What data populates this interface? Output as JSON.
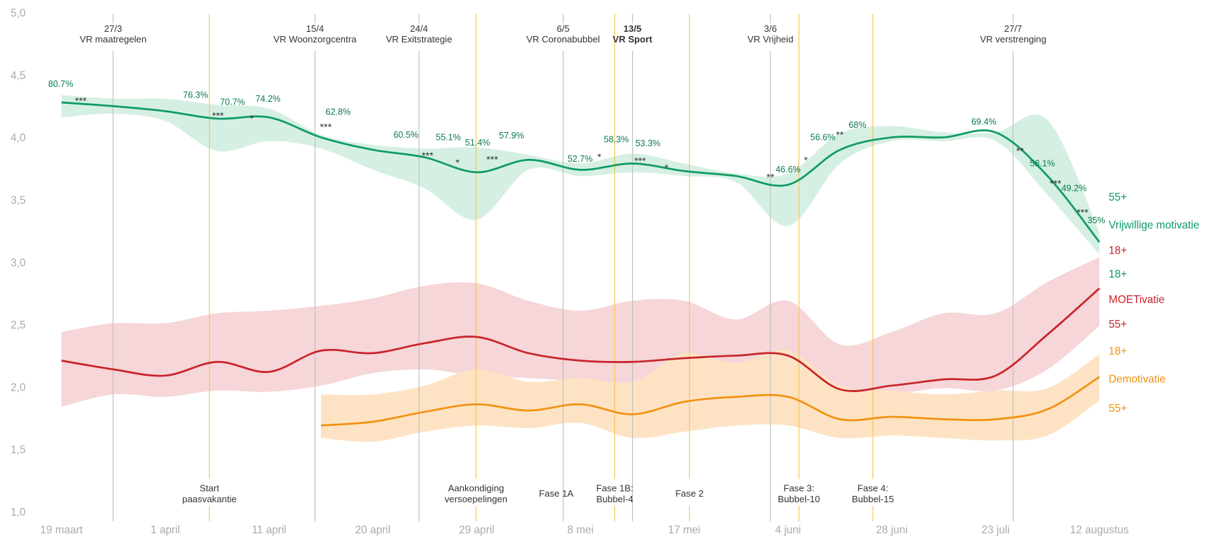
{
  "chart_data": {
    "type": "line",
    "categories": [
      "19 maart",
      null,
      "1 april",
      null,
      "11 april",
      null,
      "20 april",
      null,
      "29 april",
      null,
      "8 mei",
      null,
      "17 mei",
      null,
      "4 juni",
      null,
      "28 juni",
      null,
      "23 juli",
      null,
      "12 augustus"
    ],
    "ylim": [
      1,
      5
    ],
    "yticks": [
      {
        "value": 1,
        "label": "1,0"
      },
      {
        "value": 1.5,
        "label": "1,5"
      },
      {
        "value": 2,
        "label": "2,0"
      },
      {
        "value": 2.5,
        "label": "2,5"
      },
      {
        "value": 3,
        "label": "3,0"
      },
      {
        "value": 3.5,
        "label": "3,5"
      },
      {
        "value": 4,
        "label": "4,0"
      },
      {
        "value": 4.5,
        "label": "4,5"
      },
      {
        "value": 5,
        "label": "5,0"
      }
    ],
    "series": [
      {
        "name": "Vrijwillige motivatie",
        "color": "#0f9b64",
        "band_color": "#d6efe3",
        "upper_label": "55+",
        "lower_label": "18+",
        "values": [
          4.29,
          4.26,
          4.22,
          4.16,
          4.17,
          4.01,
          3.91,
          3.85,
          3.73,
          3.83,
          3.75,
          3.8,
          3.74,
          3.7,
          3.63,
          3.91,
          4.01,
          4.01,
          4.05,
          3.7,
          3.17
        ],
        "high": [
          4.35,
          4.32,
          4.32,
          4.27,
          4.24,
          4.03,
          3.95,
          3.92,
          3.93,
          3.87,
          3.8,
          3.88,
          3.8,
          3.72,
          3.72,
          4.04,
          4.1,
          4.05,
          4.05,
          4.15,
          3.25
        ],
        "low": [
          4.17,
          4.2,
          4.14,
          3.9,
          3.98,
          3.92,
          3.75,
          3.6,
          3.35,
          3.75,
          3.7,
          3.73,
          3.7,
          3.65,
          3.3,
          3.8,
          3.98,
          3.98,
          3.98,
          3.55,
          3.07
        ]
      },
      {
        "name": "MOETivatie",
        "color": "#c8242b",
        "band_color": "#f6d6d8",
        "upper_label": "18+",
        "lower_label": "55+",
        "values": [
          2.22,
          2.15,
          2.1,
          2.21,
          2.13,
          2.3,
          2.28,
          2.36,
          2.41,
          2.28,
          2.22,
          2.21,
          2.24,
          2.26,
          2.26,
          1.99,
          2.02,
          2.07,
          2.1,
          2.43,
          2.8
        ],
        "high": [
          2.45,
          2.52,
          2.52,
          2.6,
          2.62,
          2.66,
          2.72,
          2.82,
          2.84,
          2.7,
          2.62,
          2.7,
          2.7,
          2.55,
          2.7,
          2.35,
          2.45,
          2.6,
          2.6,
          2.85,
          3.05
        ],
        "low": [
          1.85,
          1.95,
          1.93,
          1.98,
          1.97,
          2.02,
          2.12,
          2.15,
          2.1,
          2.08,
          2.05,
          1.98,
          2.05,
          2.06,
          2.1,
          1.92,
          1.95,
          2.0,
          1.98,
          2.15,
          2.5
        ]
      },
      {
        "name": "Demotivatie",
        "color": "#f39110",
        "band_color": "#fde3c4",
        "upper_label": "18+",
        "lower_label": "55+",
        "values": [
          null,
          null,
          null,
          null,
          null,
          1.7,
          1.73,
          1.81,
          1.87,
          1.82,
          1.87,
          1.79,
          1.89,
          1.93,
          1.93,
          1.75,
          1.77,
          1.75,
          1.75,
          1.83,
          2.09
        ],
        "high": [
          null,
          null,
          null,
          null,
          null,
          1.95,
          1.95,
          2.02,
          2.15,
          2.05,
          2.08,
          2.05,
          2.28,
          2.2,
          2.3,
          2.02,
          1.98,
          1.95,
          1.98,
          2.0,
          2.27
        ],
        "low": [
          null,
          null,
          null,
          null,
          null,
          1.6,
          1.57,
          1.65,
          1.7,
          1.68,
          1.72,
          1.6,
          1.65,
          1.7,
          1.7,
          1.6,
          1.62,
          1.6,
          1.58,
          1.62,
          1.9
        ]
      }
    ],
    "top_events": [
      {
        "date": "27/3",
        "label": "VR maatregelen"
      },
      {
        "date": "15/4",
        "label": "VR Woonzorgcentra"
      },
      {
        "date": "24/4",
        "label": "VR Exitstrategie"
      },
      {
        "date": "6/5",
        "label": "VR Coronabubbel"
      },
      {
        "date": "13/5",
        "label": "VR Sport"
      },
      {
        "date": "3/6",
        "label": "VR Vrijheid"
      },
      {
        "date": "27/7",
        "label": "VR verstrenging"
      }
    ],
    "bottom_events": [
      {
        "lines": [
          "Start",
          "paasvakantie"
        ]
      },
      {
        "lines": [
          "Aankondiging",
          "versoepelingen"
        ]
      },
      {
        "lines": [
          "Fase 1A"
        ]
      },
      {
        "lines": [
          "Fase 1B:",
          "Bubbel-4"
        ]
      },
      {
        "lines": [
          "Fase 2"
        ]
      },
      {
        "lines": [
          "Fase 3:",
          "Bubbel-10"
        ]
      },
      {
        "lines": [
          "Fase 4:",
          "Bubbel-15"
        ]
      }
    ],
    "percent_labels": [
      "80.7%",
      "76.3%",
      "70.7%",
      "74.2%",
      "62.8%",
      "60.5%",
      "55.1%",
      "51.4%",
      "57.9%",
      "52.7%",
      "58.3%",
      "53.3%",
      "46.6%",
      "56.6%",
      "68%",
      "69.4%",
      "58.1%",
      "49.2%",
      "35%"
    ],
    "significance_labels": [
      "***",
      "***",
      "*",
      "***",
      "***",
      "*",
      "***",
      "*",
      "***",
      "*",
      "**",
      "*",
      "**",
      "**",
      "***",
      "***"
    ]
  }
}
